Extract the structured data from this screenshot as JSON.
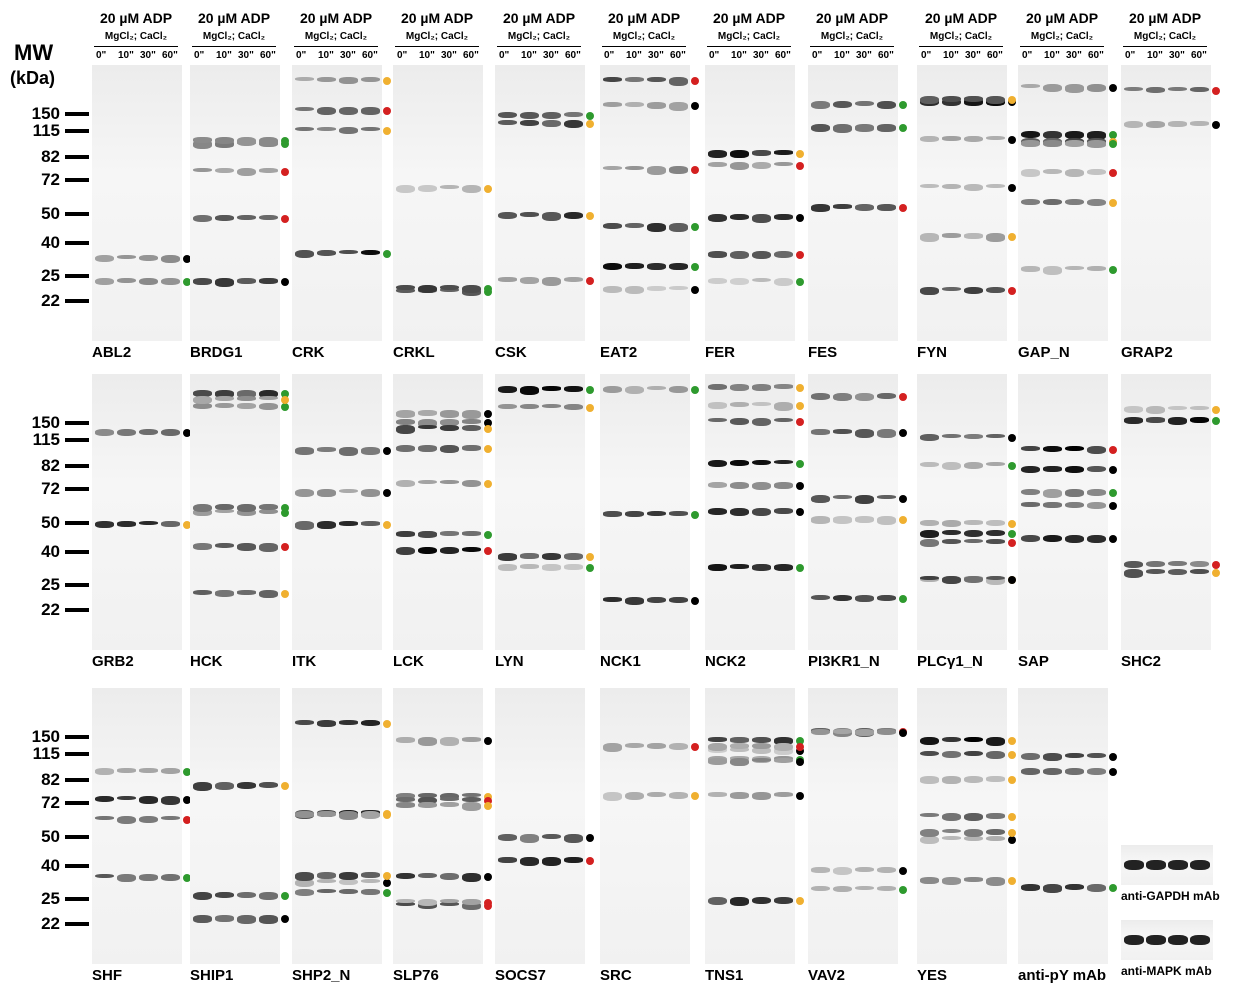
{
  "header": {
    "treatment": "20 µM ADP",
    "buffer": "MgCl₂; CaCl₂",
    "times": [
      "0\"",
      "10\"",
      "30\"",
      "60\""
    ]
  },
  "mw_axis": {
    "title": "MW",
    "unit": "(kDa)",
    "markers": [
      150,
      115,
      82,
      72,
      50,
      40,
      25,
      22
    ]
  },
  "rows": [
    {
      "panels": [
        "ABL2",
        "BRDG1",
        "CRK",
        "CRKL",
        "CSK",
        "EAT2",
        "FER",
        "FES",
        "FYN",
        "GAP_N",
        "GRAP2"
      ]
    },
    {
      "panels": [
        "GRB2",
        "HCK",
        "ITK",
        "LCK",
        "LYN",
        "NCK1",
        "NCK2",
        "PI3KR1_N",
        "PLCγ1_N",
        "SAP",
        "SHC2"
      ]
    },
    {
      "panels": [
        "SHF",
        "SHIP1",
        "SHP2_N",
        "SLP76",
        "SOCS7",
        "SRC",
        "TNS1",
        "VAV2",
        "YES",
        "anti-pY mAb"
      ]
    }
  ],
  "controls": [
    "anti-GAPDH mAb",
    "anti-MAPK mAb"
  ]
}
